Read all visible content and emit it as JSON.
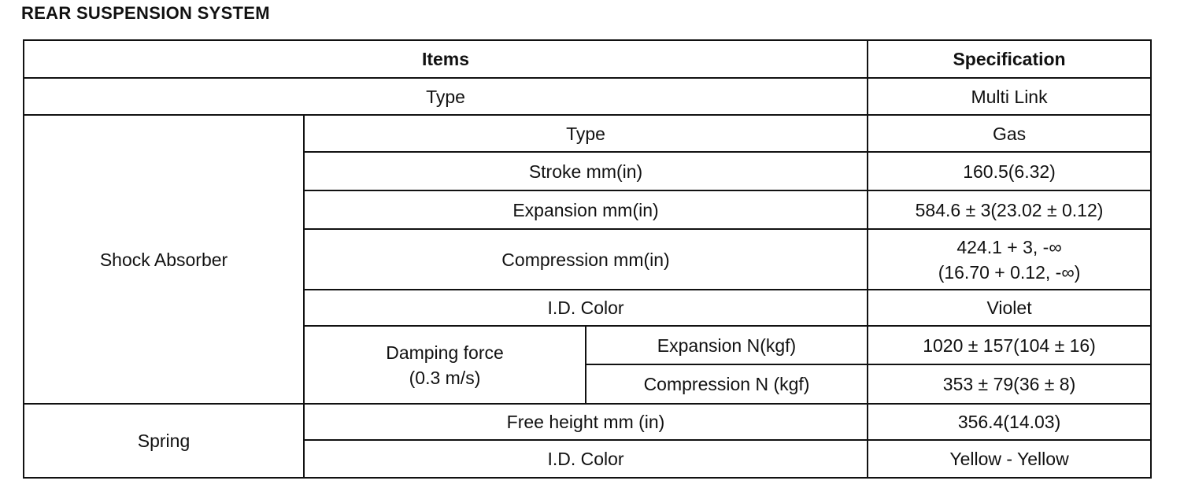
{
  "title": "REAR SUSPENSION SYSTEM",
  "header": {
    "items": "Items",
    "specification": "Specification"
  },
  "type_row": {
    "label": "Type",
    "value": "Multi Link"
  },
  "shock_absorber": {
    "label": "Shock Absorber",
    "type": {
      "label": "Type",
      "value": "Gas"
    },
    "stroke": {
      "label": "Stroke mm(in)",
      "value": "160.5(6.32)"
    },
    "expansion": {
      "label": "Expansion mm(in)",
      "value": "584.6 ± 3(23.02 ± 0.12)"
    },
    "compression": {
      "label": "Compression mm(in)",
      "value_line1": "424.1 + 3, -∞",
      "value_line2": "(16.70 + 0.12, -∞)"
    },
    "id_color": {
      "label": "I.D. Color",
      "value": "Violet"
    },
    "damping": {
      "label_line1": "Damping force",
      "label_line2": "(0.3 m/s)",
      "expansion": {
        "label": "Expansion N(kgf)",
        "value": "1020 ± 157(104 ± 16)"
      },
      "compression": {
        "label": "Compression N (kgf)",
        "value": "353 ± 79(36 ± 8)"
      }
    }
  },
  "spring": {
    "label": "Spring",
    "free_height": {
      "label": "Free height mm (in)",
      "value": "356.4(14.03)"
    },
    "id_color": {
      "label": "I.D. Color",
      "value": "Yellow - Yellow"
    }
  }
}
